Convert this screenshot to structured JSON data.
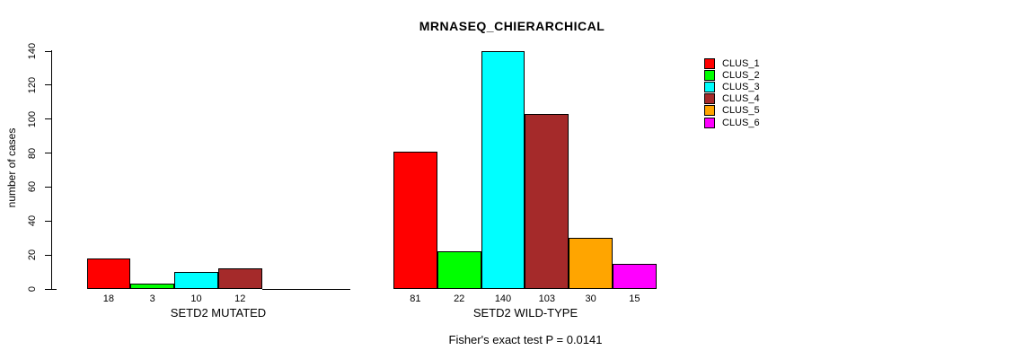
{
  "title": "MRNASEQ_CHIERARCHICAL",
  "chart_data": {
    "type": "bar",
    "title": "MRNASEQ_CHIERARCHICAL",
    "ylabel": "number of cases",
    "xlabel": "",
    "ylim": [
      0,
      140
    ],
    "yticks": [
      0,
      20,
      40,
      60,
      80,
      100,
      120,
      140
    ],
    "grid": false,
    "legend_position": "right-outside",
    "series_colors": [
      "#FF0000",
      "#00FF00",
      "#00FFFF",
      "#A52A2A",
      "#FFA500",
      "#FF00FF"
    ],
    "groups": [
      {
        "label": "SETD2 MUTATED",
        "values": [
          18,
          3,
          10,
          12,
          0,
          0
        ],
        "bar_labels": [
          "18",
          "3",
          "10",
          "12",
          "",
          ""
        ]
      },
      {
        "label": "SETD2 WILD-TYPE",
        "values": [
          81,
          22,
          140,
          103,
          30,
          15
        ],
        "bar_labels": [
          "81",
          "22",
          "140",
          "103",
          "30",
          "15"
        ]
      }
    ],
    "legend": [
      {
        "label": "CLUS_1",
        "color": "#FF0000"
      },
      {
        "label": "CLUS_2",
        "color": "#00FF00"
      },
      {
        "label": "CLUS_3",
        "color": "#00FFFF"
      },
      {
        "label": "CLUS_4",
        "color": "#A52A2A"
      },
      {
        "label": "CLUS_5",
        "color": "#FFA500"
      },
      {
        "label": "CLUS_6",
        "color": "#FF00FF"
      }
    ],
    "annotation": "Fisher's exact test P = 0.0141"
  }
}
